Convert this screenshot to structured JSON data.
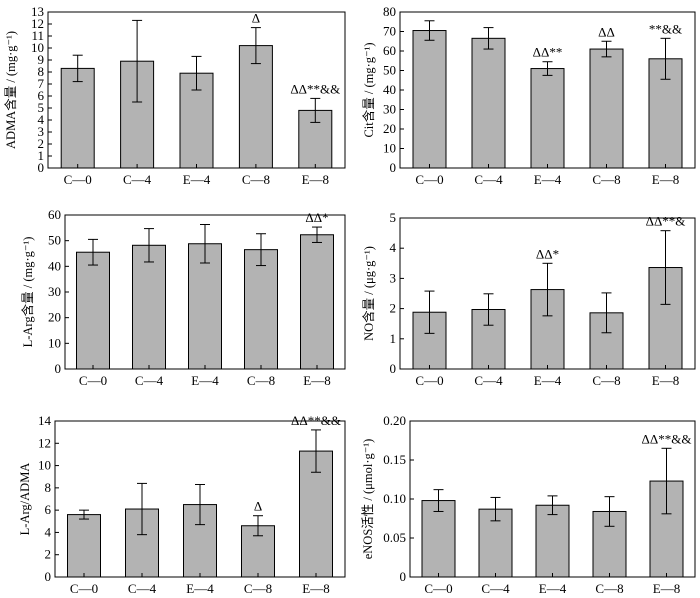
{
  "figure": {
    "bar_fill": "#b3b3b3",
    "bar_stroke": "#000000"
  },
  "chart_data": [
    {
      "id": "adma",
      "type": "bar",
      "ylabel": "ADMA含量 / (mg·g⁻¹)",
      "categories": [
        "C—0",
        "C—4",
        "E—4",
        "C—8",
        "E—8"
      ],
      "values": [
        8.3,
        8.9,
        7.9,
        10.2,
        4.8
      ],
      "errors": [
        1.1,
        3.4,
        1.4,
        1.5,
        1.0
      ],
      "annotations": [
        "",
        "",
        "",
        "Δ",
        "ΔΔ**&&"
      ],
      "ylim": [
        0,
        13
      ],
      "yticks": [
        "0",
        "1",
        "2",
        "3",
        "4",
        "5",
        "6",
        "7",
        "8",
        "9",
        "10",
        "11",
        "12",
        "13"
      ]
    },
    {
      "id": "cit",
      "type": "bar",
      "ylabel": "Cit含量 / (mg·g⁻¹)",
      "categories": [
        "C—0",
        "C—4",
        "E—4",
        "C—8",
        "E—8"
      ],
      "values": [
        70.5,
        66.5,
        51,
        61,
        56
      ],
      "errors": [
        5,
        5.5,
        3.5,
        4,
        10.5
      ],
      "annotations": [
        "",
        "",
        "ΔΔ**",
        "ΔΔ",
        "**&&"
      ],
      "ylim": [
        0,
        80
      ],
      "yticks": [
        "0",
        "10",
        "20",
        "30",
        "40",
        "50",
        "60",
        "70",
        "80"
      ]
    },
    {
      "id": "larg",
      "type": "bar",
      "ylabel": "L-Arg含量 / (mg·g⁻¹)",
      "categories": [
        "C—0",
        "C—4",
        "E—4",
        "C—8",
        "E—8"
      ],
      "values": [
        45.5,
        48.2,
        48.8,
        46.5,
        52.3
      ],
      "errors": [
        5,
        6.5,
        7.5,
        6.2,
        3
      ],
      "annotations": [
        "",
        "",
        "",
        "",
        "ΔΔ*"
      ],
      "ylim": [
        0,
        60
      ],
      "yticks": [
        "0",
        "10",
        "20",
        "30",
        "40",
        "50",
        "60"
      ]
    },
    {
      "id": "no",
      "type": "bar",
      "ylabel": "NO含量 / (μg·g⁻¹)",
      "categories": [
        "C—0",
        "C—4",
        "E—4",
        "C—8",
        "E—8"
      ],
      "values": [
        1.88,
        1.97,
        2.63,
        1.86,
        3.36
      ],
      "errors": [
        0.7,
        0.52,
        0.87,
        0.66,
        1.22
      ],
      "annotations": [
        "",
        "",
        "ΔΔ*",
        "",
        "ΔΔ**&"
      ],
      "ylim": [
        0,
        5
      ],
      "yticks": [
        "0",
        "1",
        "2",
        "3",
        "4",
        "5"
      ]
    },
    {
      "id": "ratio",
      "type": "bar",
      "ylabel": "L-Arg/ADMA",
      "categories": [
        "C—0",
        "C—4",
        "E—4",
        "C—8",
        "E—8"
      ],
      "values": [
        5.6,
        6.1,
        6.5,
        4.6,
        11.3
      ],
      "errors": [
        0.4,
        2.3,
        1.8,
        0.9,
        1.9
      ],
      "annotations": [
        "",
        "",
        "",
        "Δ",
        "ΔΔ**&&"
      ],
      "ylim": [
        0,
        14
      ],
      "yticks": [
        "0",
        "2",
        "4",
        "6",
        "8",
        "10",
        "12",
        "14"
      ]
    },
    {
      "id": "enos",
      "type": "bar",
      "ylabel": "eNOS活性 / (μmol·g⁻¹)",
      "categories": [
        "C—0",
        "C—4",
        "E—4",
        "C—8",
        "E—8"
      ],
      "values": [
        0.098,
        0.087,
        0.092,
        0.084,
        0.123
      ],
      "errors": [
        0.014,
        0.015,
        0.012,
        0.019,
        0.042
      ],
      "annotations": [
        "",
        "",
        "",
        "",
        "ΔΔ**&&"
      ],
      "ylim": [
        0,
        0.2
      ],
      "yticks": [
        "0",
        "0.05",
        "0.10",
        "0.15",
        "0.20"
      ]
    }
  ]
}
